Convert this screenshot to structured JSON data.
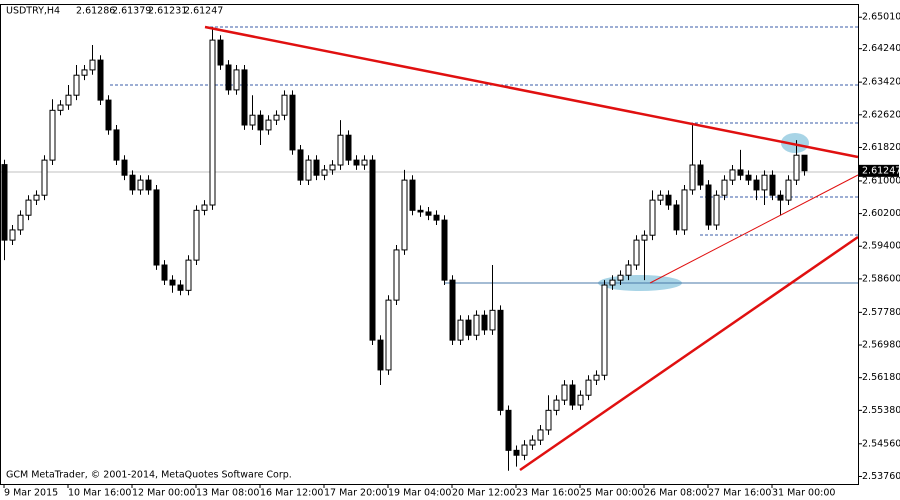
{
  "chart_data": {
    "type": "candlestick",
    "title": "USDTRY,H4",
    "quote": [
      2.61286,
      2.61379,
      2.61231,
      2.61247
    ],
    "current_price": 2.61247,
    "footer": "GCM MetaTrader, © 2001-2014, MetaQuotes Software Corp.",
    "categories": [
      "9 Mar 2015",
      null,
      null,
      null,
      null,
      null,
      null,
      null,
      "10 Mar 16:00",
      null,
      null,
      null,
      null,
      null,
      null,
      null,
      "12 Mar 00:00",
      null,
      null,
      null,
      null,
      null,
      null,
      null,
      "13 Mar 08:00",
      null,
      null,
      null,
      null,
      null,
      null,
      null,
      "16 Mar 12:00",
      null,
      null,
      null,
      null,
      null,
      null,
      null,
      "17 Mar 20:00",
      null,
      null,
      null,
      null,
      null,
      null,
      null,
      "19 Mar 04:00",
      null,
      null,
      null,
      null,
      null,
      null,
      null,
      "20 Mar 12:00",
      null,
      null,
      null,
      null,
      null,
      null,
      null,
      "23 Mar 16:00",
      null,
      null,
      null,
      null,
      null,
      null,
      null,
      "25 Mar 00:00",
      null,
      null,
      null,
      null,
      null,
      null,
      null,
      "26 Mar 08:00",
      null,
      null,
      null,
      null,
      null,
      null,
      null,
      "27 Mar 16:00",
      null,
      null,
      null,
      null,
      null,
      null,
      null,
      "31 Mar 00:00",
      null,
      null,
      null,
      null
    ],
    "open": [
      2.614,
      2.5955,
      2.598,
      2.6016,
      2.6053,
      2.6065,
      2.6151,
      2.6273,
      2.6286,
      2.631,
      2.6359,
      2.6372,
      2.6396,
      2.6298,
      2.6225,
      2.6151,
      2.6114,
      2.6078,
      2.6102,
      2.6078,
      2.5894,
      2.5857,
      2.5845,
      2.5832,
      2.5906,
      2.6028,
      2.6041,
      2.6445,
      2.6384,
      2.6323,
      2.6372,
      2.6237,
      2.6261,
      2.6225,
      2.6249,
      2.6261,
      2.631,
      2.6176,
      2.6102,
      2.6151,
      2.6114,
      2.6127,
      2.6139,
      2.6212,
      2.6151,
      2.6139,
      2.6151,
      2.571,
      2.5637,
      2.5808,
      2.5931,
      2.6102,
      2.6028,
      2.6024,
      2.6016,
      2.6004,
      2.5857,
      2.571,
      2.5759,
      2.5722,
      2.5771,
      2.5735,
      2.5783,
      2.5538,
      2.544,
      2.5428,
      2.5453,
      2.5465,
      2.549,
      2.5538,
      2.5563,
      2.56,
      2.5551,
      2.5575,
      2.5612,
      2.5624,
      2.5845,
      2.5857,
      2.5869,
      2.5894,
      2.5955,
      2.5967,
      2.6053,
      2.6065,
      2.6041,
      2.598,
      2.6078,
      2.6139,
      2.609,
      2.5992,
      2.6065,
      2.6102,
      2.6127,
      2.6114,
      2.6102,
      2.6078,
      2.6114,
      2.6065,
      2.6053,
      2.6102,
      2.6163
    ],
    "high": [
      2.6152,
      2.5992,
      2.6028,
      2.6065,
      2.6077,
      2.6163,
      2.63,
      2.6298,
      2.6335,
      2.6384,
      2.6384,
      2.6433,
      2.6408,
      2.631,
      2.6237,
      2.6163,
      2.6126,
      2.6114,
      2.6114,
      2.609,
      2.5906,
      2.5869,
      2.5857,
      2.5918,
      2.604,
      2.6053,
      2.6477,
      2.6457,
      2.6396,
      2.6384,
      2.6384,
      2.631,
      2.6273,
      2.6261,
      2.6273,
      2.6322,
      2.6322,
      2.6188,
      2.6163,
      2.6163,
      2.6139,
      2.6151,
      2.6249,
      2.6224,
      2.6163,
      2.6163,
      2.6163,
      2.5722,
      2.582,
      2.5943,
      2.6127,
      2.6114,
      2.604,
      2.6036,
      2.6028,
      2.6016,
      2.5869,
      2.5771,
      2.5771,
      2.5783,
      2.5783,
      2.5894,
      2.5795,
      2.555,
      2.5452,
      2.5465,
      2.5477,
      2.5502,
      2.5575,
      2.5575,
      2.5612,
      2.5612,
      2.5587,
      2.5624,
      2.5636,
      2.5857,
      2.5869,
      2.5881,
      2.5906,
      2.5967,
      2.5979,
      2.6077,
      2.6077,
      2.6077,
      2.6053,
      2.609,
      2.624,
      2.6151,
      2.6102,
      2.6077,
      2.6114,
      2.6139,
      2.6176,
      2.6126,
      2.6114,
      2.6126,
      2.6126,
      2.6077,
      2.6114,
      2.62,
      2.6163
    ],
    "low": [
      2.5906,
      2.5943,
      2.5968,
      2.6004,
      2.6041,
      2.6053,
      2.6139,
      2.6261,
      2.6274,
      2.6298,
      2.6347,
      2.636,
      2.6286,
      2.6213,
      2.6139,
      2.6102,
      2.6066,
      2.6066,
      2.6066,
      2.5882,
      2.5845,
      2.5826,
      2.582,
      2.582,
      2.5894,
      2.6016,
      2.6029,
      2.6372,
      2.6311,
      2.6311,
      2.6225,
      2.6225,
      2.6188,
      2.6213,
      2.6237,
      2.6249,
      2.6164,
      2.609,
      2.609,
      2.6102,
      2.6102,
      2.6115,
      2.6127,
      2.6139,
      2.6127,
      2.6127,
      2.5698,
      2.56,
      2.5625,
      2.5796,
      2.5919,
      2.6016,
      2.6012,
      2.6004,
      2.5992,
      2.5845,
      2.5698,
      2.5698,
      2.571,
      2.571,
      2.5723,
      2.5723,
      2.5526,
      2.539,
      2.54,
      2.5416,
      2.5441,
      2.5453,
      2.5478,
      2.5526,
      2.5551,
      2.5539,
      2.5539,
      2.5563,
      2.56,
      2.5612,
      2.5833,
      2.5845,
      2.5857,
      2.5882,
      2.5857,
      2.5955,
      2.6041,
      2.6029,
      2.5968,
      2.5968,
      2.6066,
      2.6078,
      2.598,
      2.598,
      2.6053,
      2.609,
      2.6102,
      2.609,
      2.6053,
      2.6041,
      2.6053,
      2.6016,
      2.6041,
      2.609,
      2.6113
    ],
    "close": [
      2.5955,
      2.598,
      2.6016,
      2.6053,
      2.6065,
      2.6151,
      2.6273,
      2.6286,
      2.631,
      2.6359,
      2.6372,
      2.6396,
      2.6298,
      2.6225,
      2.6151,
      2.6114,
      2.6078,
      2.6102,
      2.6078,
      2.5894,
      2.5857,
      2.5845,
      2.5832,
      2.5906,
      2.6028,
      2.6041,
      2.6445,
      2.6384,
      2.6323,
      2.6372,
      2.6237,
      2.6261,
      2.6225,
      2.6249,
      2.6261,
      2.631,
      2.6176,
      2.6102,
      2.6151,
      2.6114,
      2.6127,
      2.6139,
      2.6212,
      2.6151,
      2.6139,
      2.6151,
      2.571,
      2.5637,
      2.5808,
      2.5931,
      2.6102,
      2.6028,
      2.6024,
      2.6016,
      2.6004,
      2.5857,
      2.571,
      2.5759,
      2.5722,
      2.5771,
      2.5735,
      2.5783,
      2.5538,
      2.544,
      2.5428,
      2.5453,
      2.5465,
      2.549,
      2.5538,
      2.5563,
      2.56,
      2.5551,
      2.5575,
      2.5612,
      2.5624,
      2.5845,
      2.5857,
      2.5869,
      2.5894,
      2.5955,
      2.5967,
      2.6053,
      2.6065,
      2.6041,
      2.598,
      2.6078,
      2.6139,
      2.609,
      2.5992,
      2.6065,
      2.6102,
      2.6127,
      2.6114,
      2.6102,
      2.6078,
      2.6114,
      2.6065,
      2.6053,
      2.6102,
      2.6163,
      2.6125
    ],
    "ylim": [
      2.536,
      2.6531
    ],
    "yticks": [
      {
        "value": 2.6501,
        "label": "2.65010"
      },
      {
        "value": 2.6424,
        "label": "2.64240"
      },
      {
        "value": 2.6342,
        "label": "2.63420"
      },
      {
        "value": 2.6262,
        "label": "2.62620"
      },
      {
        "value": 2.6182,
        "label": "2.61820"
      },
      {
        "value": 2.61,
        "label": "2.61000"
      },
      {
        "value": 2.602,
        "label": "2.60200"
      },
      {
        "value": 2.594,
        "label": "2.59400"
      },
      {
        "value": 2.586,
        "label": "2.58600"
      },
      {
        "value": 2.5778,
        "label": "2.57780"
      },
      {
        "value": 2.5698,
        "label": "2.56980"
      },
      {
        "value": 2.5618,
        "label": "2.56180"
      },
      {
        "value": 2.5538,
        "label": "2.55380"
      },
      {
        "value": 2.5456,
        "label": "2.54560"
      },
      {
        "value": 2.5376,
        "label": "2.53760"
      }
    ],
    "bull_color": "#ffffff",
    "bear_color": "#000000"
  }
}
